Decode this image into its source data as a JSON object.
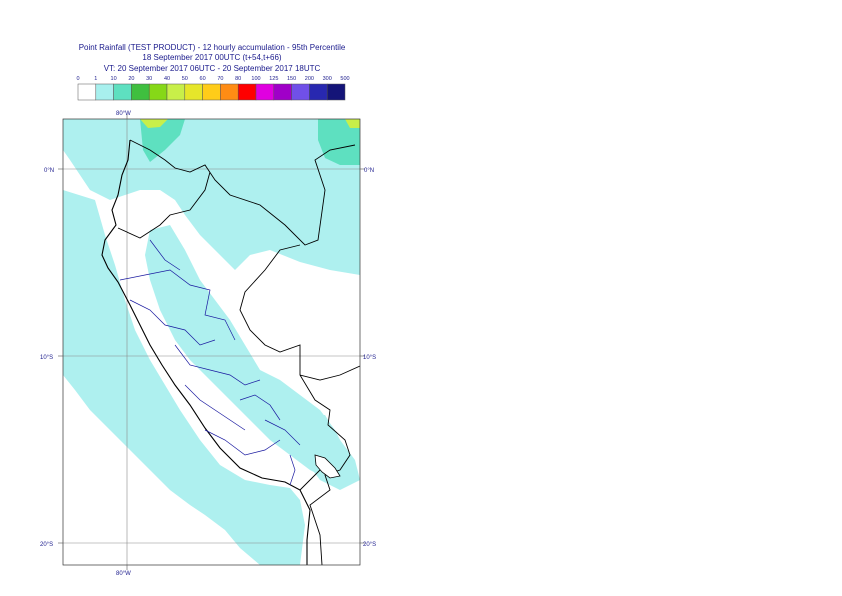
{
  "header": {
    "title_line1": "Point Rainfall (TEST PRODUCT) - 12 hourly accumulation - 95th Percentile",
    "title_line2": "18 September 2017 00UTC (t+54,t+66)",
    "title_line3": "VT: 20 September 2017 06UTC - 20 September 2017 18UTC"
  },
  "legend": {
    "thresholds": [
      "0",
      "1",
      "10",
      "20",
      "30",
      "40",
      "50",
      "60",
      "70",
      "80",
      "100",
      "125",
      "150",
      "200",
      "300",
      "500"
    ],
    "colors": [
      "#ffffff",
      "#a8f0ee",
      "#5ee0c0",
      "#3fbf3f",
      "#86d817",
      "#c8ef49",
      "#e6e62a",
      "#ffcc19",
      "#ff8c14",
      "#ff0000",
      "#e000e0",
      "#a000c8",
      "#7050e8",
      "#2828b0",
      "#141478"
    ]
  },
  "map": {
    "lat_labels": [
      "0°N",
      "10°S",
      "20°S"
    ],
    "lon_labels": [
      "80°W",
      "80°W"
    ],
    "colors": {
      "land": "#ffffff",
      "ocean_rain": "#aef0ef",
      "moderate_rain": "#5ee0c0",
      "heavy_rain": "#c8ef49",
      "coast": "#000000",
      "borders": "#1a1aa0",
      "grid": "#8a8a8a"
    }
  }
}
